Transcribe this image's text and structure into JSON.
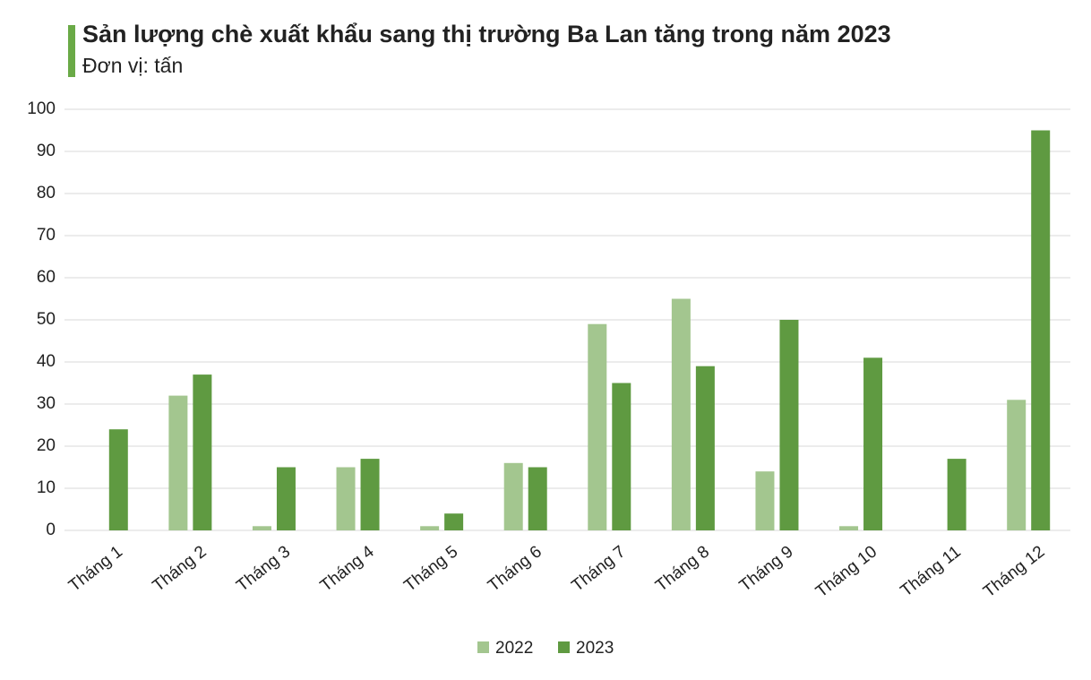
{
  "chart_data": {
    "type": "bar",
    "title": "Sản lượng chè xuất khẩu sang thị trường Ba Lan tăng trong năm 2023",
    "subtitle": "Đơn vị: tấn",
    "categories": [
      "Tháng 1",
      "Tháng 2",
      "Tháng 3",
      "Tháng 4",
      "Tháng 5",
      "Tháng 6",
      "Tháng 7",
      "Tháng 8",
      "Tháng 9",
      "Tháng 10",
      "Tháng 11",
      "Tháng 12"
    ],
    "series": [
      {
        "name": "2022",
        "color": "#a3c68f",
        "values": [
          0,
          32,
          1,
          15,
          1,
          16,
          49,
          55,
          14,
          1,
          0,
          31
        ]
      },
      {
        "name": "2023",
        "color": "#5f9a41",
        "values": [
          24,
          37,
          15,
          17,
          4,
          15,
          35,
          39,
          50,
          41,
          17,
          95
        ]
      }
    ],
    "ylim": [
      0,
      100
    ],
    "yticks": [
      0,
      10,
      20,
      30,
      40,
      50,
      60,
      70,
      80,
      90,
      100
    ],
    "grid": true,
    "legend": "bottom"
  }
}
